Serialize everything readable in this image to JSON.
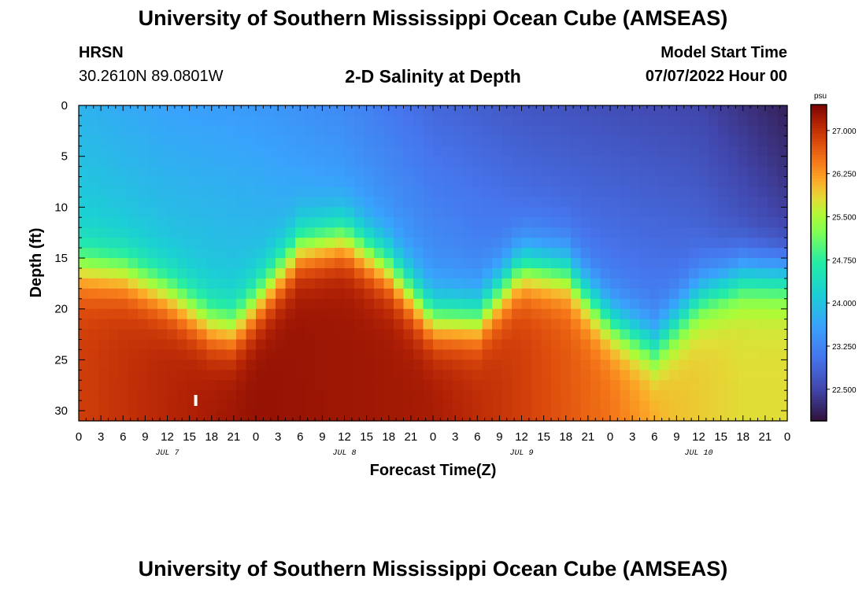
{
  "page": {
    "title_top": "University of Southern Mississippi Ocean Cube (AMSEAS)",
    "title_bottom": "University of Southern Mississippi Ocean Cube (AMSEAS)",
    "station": "HRSN",
    "location": "30.2610N  89.0801W",
    "plot_title": "2-D Salinity at Depth",
    "model_start_label": "Model Start Time",
    "model_start_value": "07/07/2022 Hour 00"
  },
  "chart_data": {
    "type": "heatmap",
    "title": "2-D Salinity at Depth",
    "xlabel": "Forecast Time(Z)",
    "ylabel": "Depth (ft)",
    "x_range_hours": [
      0,
      96
    ],
    "y_range_ft": [
      0,
      31
    ],
    "x_tick_hours": [
      0,
      3,
      6,
      9,
      12,
      15,
      18,
      21,
      24,
      27,
      30,
      33,
      36,
      39,
      42,
      45,
      48,
      51,
      54,
      57,
      60,
      63,
      66,
      69,
      72,
      75,
      78,
      81,
      84,
      87,
      90,
      93,
      96
    ],
    "x_tick_labels": [
      "0",
      "3",
      "6",
      "9",
      "12",
      "15",
      "18",
      "21",
      "0",
      "3",
      "6",
      "9",
      "12",
      "15",
      "18",
      "21",
      "0",
      "3",
      "6",
      "9",
      "12",
      "15",
      "18",
      "21",
      "0",
      "3",
      "6",
      "9",
      "12",
      "15",
      "18",
      "21",
      "0"
    ],
    "day_labels": [
      {
        "text": "JUL 7",
        "hour": 12
      },
      {
        "text": "JUL 8",
        "hour": 36
      },
      {
        "text": "JUL 9",
        "hour": 60
      },
      {
        "text": "JUL 10",
        "hour": 84
      }
    ],
    "y_ticks": [
      0,
      5,
      10,
      15,
      20,
      25,
      30
    ],
    "y_tick_labels": [
      "0",
      "5",
      "10",
      "15",
      "20",
      "25",
      "30"
    ],
    "colorbar": {
      "unit": "psu",
      "range": [
        21.95,
        27.45
      ],
      "ticks": [
        27.0,
        26.25,
        25.5,
        24.75,
        24.0,
        23.25,
        22.5
      ],
      "tick_labels": [
        "27.000",
        "26.250",
        "25.500",
        "24.750",
        "24.000",
        "23.250",
        "22.500"
      ]
    },
    "halocline_depth_ft": {
      "hours": [
        0,
        6,
        12,
        18,
        21,
        24,
        30,
        36,
        42,
        48,
        54,
        60,
        66,
        72,
        78,
        84,
        90,
        96
      ],
      "depth": [
        16,
        16.5,
        18.5,
        21.5,
        22,
        19.5,
        14,
        13,
        16,
        21,
        21,
        16,
        16.5,
        21.5,
        24,
        19,
        17,
        17
      ]
    },
    "surface_salinity_psu": {
      "hours": [
        0,
        12,
        24,
        36,
        48,
        60,
        72,
        84,
        96
      ],
      "values": [
        23.8,
        23.6,
        23.5,
        23.3,
        22.9,
        22.7,
        22.6,
        22.5,
        22.1
      ]
    },
    "bottom_salinity_psu": {
      "hours": [
        0,
        24,
        48,
        60,
        72,
        80,
        90,
        96
      ],
      "values": [
        26.9,
        27.3,
        27.2,
        26.9,
        26.5,
        26.0,
        25.8,
        25.8
      ]
    }
  }
}
